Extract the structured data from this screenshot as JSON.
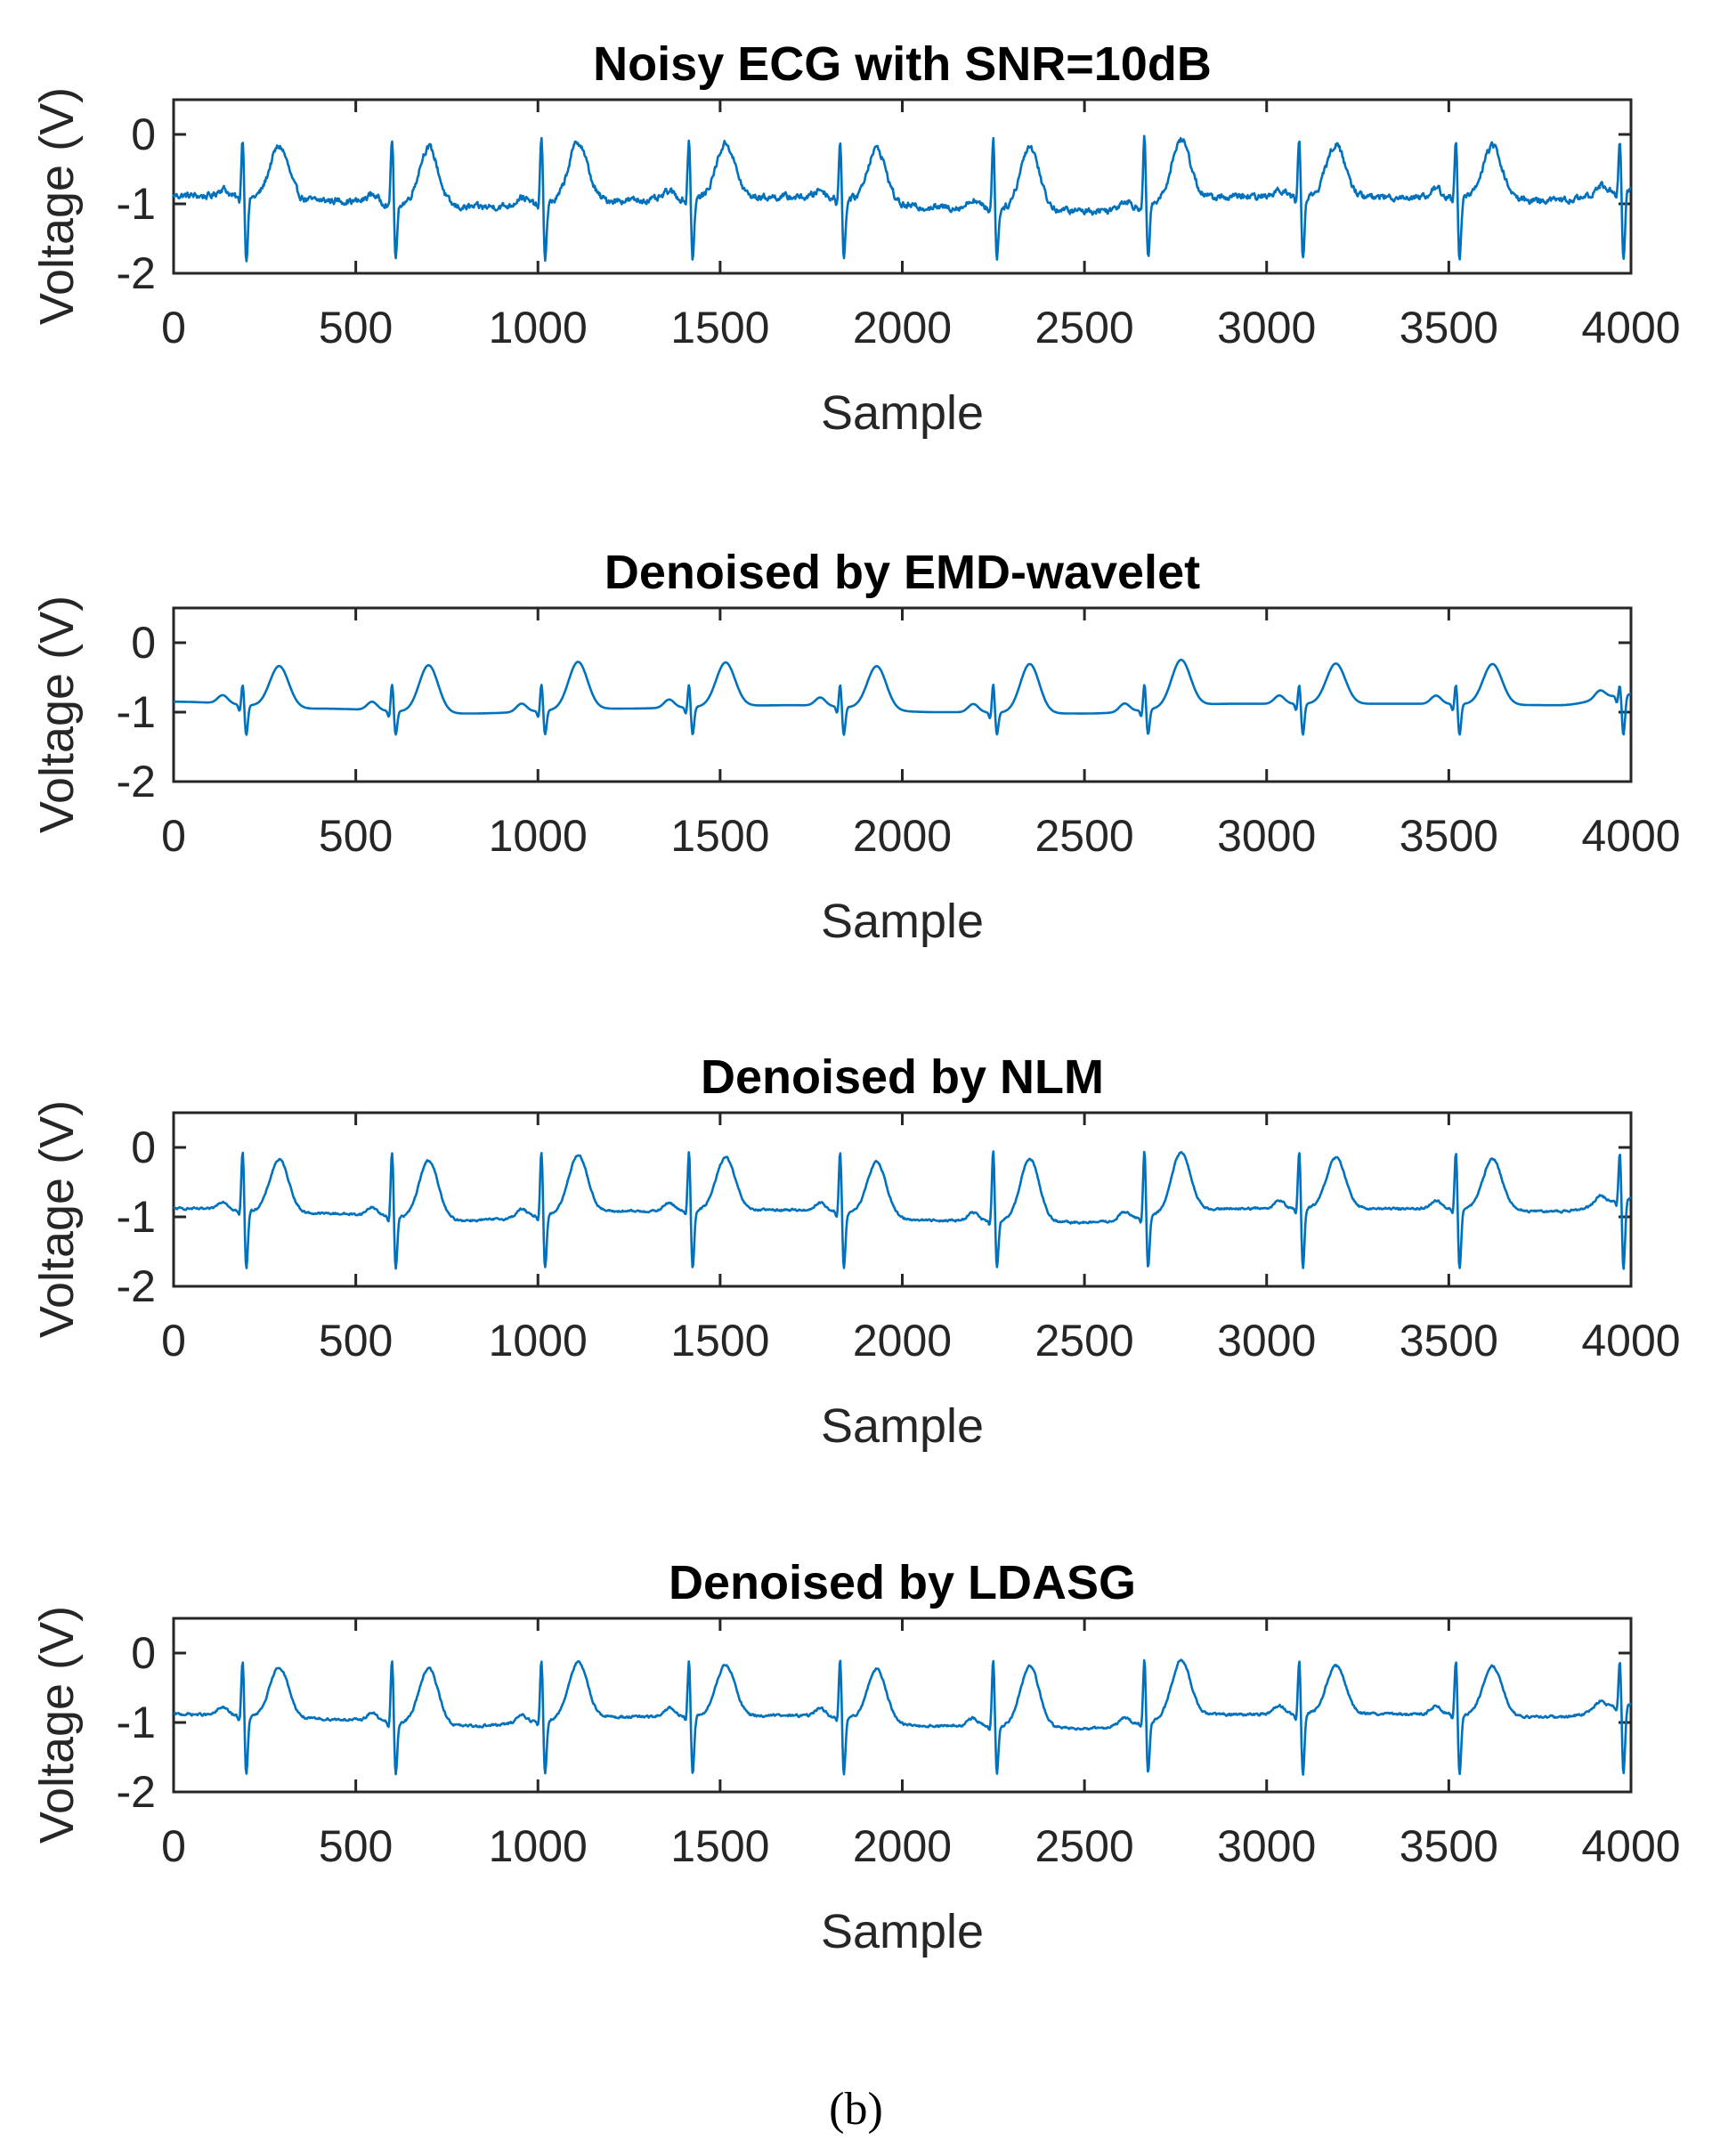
{
  "figure": {
    "caption": "(b)",
    "line_color": "#0072BD"
  },
  "chart_data": [
    {
      "type": "line",
      "title": "Noisy ECG with SNR=10dB",
      "xlabel": "Sample",
      "ylabel": "Voltage (V)",
      "xlim": [
        0,
        4000
      ],
      "ylim": [
        -2,
        0.5
      ],
      "xticks": [
        0,
        500,
        1000,
        1500,
        2000,
        2500,
        3000,
        3500,
        4000
      ],
      "xtick_labels": [
        "0",
        "500",
        "1000",
        "1500",
        "2000",
        "2500",
        "3000",
        "3500",
        "4000"
      ],
      "yticks": [
        0,
        -1,
        -2
      ],
      "ytick_labels": [
        "0",
        "-1",
        "-2"
      ],
      "grid": false,
      "series": [
        {
          "name": "Noisy ECG",
          "beats": [
            190,
            600,
            1010,
            1415,
            1830,
            2250,
            2665,
            3090,
            3520,
            3970
          ],
          "baseline": [
            [
              0,
              -0.88
            ],
            [
              400,
              -0.95
            ],
            [
              800,
              -1.05
            ],
            [
              1200,
              -0.95
            ],
            [
              1700,
              -0.9
            ],
            [
              2100,
              -1.05
            ],
            [
              2500,
              -1.1
            ],
            [
              2900,
              -0.9
            ],
            [
              3400,
              -0.9
            ],
            [
              3800,
              -0.95
            ],
            [
              4000,
              -0.8
            ]
          ],
          "r_peak": 0.05,
          "s_trough": -1.85,
          "t_peak": -0.15,
          "noise_amplitude": 0.08
        }
      ]
    },
    {
      "type": "line",
      "title": "Denoised by EMD-wavelet",
      "xlabel": "Sample",
      "ylabel": "Voltage (V)",
      "xlim": [
        0,
        4000
      ],
      "ylim": [
        -2,
        0.5
      ],
      "xticks": [
        0,
        500,
        1000,
        1500,
        2000,
        2500,
        3000,
        3500,
        4000
      ],
      "xtick_labels": [
        "0",
        "500",
        "1000",
        "1500",
        "2000",
        "2500",
        "3000",
        "3500",
        "4000"
      ],
      "yticks": [
        0,
        -1,
        -2
      ],
      "ytick_labels": [
        "0",
        "-1",
        "-2"
      ],
      "grid": false,
      "series": [
        {
          "name": "EMD-wavelet",
          "beats": [
            190,
            600,
            1010,
            1415,
            1830,
            2250,
            2665,
            3090,
            3520,
            3970
          ],
          "baseline": [
            [
              0,
              -0.85
            ],
            [
              400,
              -0.95
            ],
            [
              800,
              -1.02
            ],
            [
              1200,
              -0.95
            ],
            [
              1700,
              -0.9
            ],
            [
              2100,
              -1.0
            ],
            [
              2500,
              -1.02
            ],
            [
              2900,
              -0.88
            ],
            [
              3400,
              -0.88
            ],
            [
              3800,
              -0.9
            ],
            [
              4000,
              -0.75
            ]
          ],
          "r_peak": -0.55,
          "s_trough": -1.35,
          "t_peak": -0.3,
          "noise_amplitude": 0.0
        }
      ]
    },
    {
      "type": "line",
      "title": "Denoised by NLM",
      "xlabel": "Sample",
      "ylabel": "Voltage (V)",
      "xlim": [
        0,
        4000
      ],
      "ylim": [
        -2,
        0.5
      ],
      "xticks": [
        0,
        500,
        1000,
        1500,
        2000,
        2500,
        3000,
        3500,
        4000
      ],
      "xtick_labels": [
        "0",
        "500",
        "1000",
        "1500",
        "2000",
        "2500",
        "3000",
        "3500",
        "4000"
      ],
      "yticks": [
        0,
        -1,
        -2
      ],
      "ytick_labels": [
        "0",
        "-1",
        "-2"
      ],
      "grid": false,
      "series": [
        {
          "name": "NLM",
          "beats": [
            190,
            600,
            1010,
            1415,
            1830,
            2250,
            2665,
            3090,
            3520,
            3970
          ],
          "baseline": [
            [
              0,
              -0.88
            ],
            [
              400,
              -0.95
            ],
            [
              800,
              -1.05
            ],
            [
              1200,
              -0.92
            ],
            [
              1700,
              -0.9
            ],
            [
              2100,
              -1.05
            ],
            [
              2500,
              -1.08
            ],
            [
              2900,
              -0.88
            ],
            [
              3400,
              -0.88
            ],
            [
              3800,
              -0.92
            ],
            [
              4000,
              -0.75
            ]
          ],
          "r_peak": 0.05,
          "s_trough": -1.8,
          "t_peak": -0.15,
          "noise_amplitude": 0.025
        }
      ]
    },
    {
      "type": "line",
      "title": "Denoised by LDASG",
      "xlabel": "Sample",
      "ylabel": "Voltage (V)",
      "xlim": [
        0,
        4000
      ],
      "ylim": [
        -2,
        0.5
      ],
      "xticks": [
        0,
        500,
        1000,
        1500,
        2000,
        2500,
        3000,
        3500,
        4000
      ],
      "xtick_labels": [
        "0",
        "500",
        "1000",
        "1500",
        "2000",
        "2500",
        "3000",
        "3500",
        "4000"
      ],
      "yticks": [
        0,
        -1,
        -2
      ],
      "ytick_labels": [
        "0",
        "-1",
        "-2"
      ],
      "grid": false,
      "series": [
        {
          "name": "LDASG",
          "beats": [
            190,
            600,
            1010,
            1415,
            1830,
            2250,
            2665,
            3090,
            3520,
            3970
          ],
          "baseline": [
            [
              0,
              -0.88
            ],
            [
              400,
              -0.95
            ],
            [
              800,
              -1.05
            ],
            [
              1200,
              -0.92
            ],
            [
              1700,
              -0.9
            ],
            [
              2100,
              -1.05
            ],
            [
              2500,
              -1.08
            ],
            [
              2900,
              -0.88
            ],
            [
              3400,
              -0.88
            ],
            [
              3800,
              -0.92
            ],
            [
              4000,
              -0.75
            ]
          ],
          "r_peak": 0.0,
          "s_trough": -1.8,
          "t_peak": -0.18,
          "noise_amplitude": 0.03
        }
      ]
    }
  ]
}
